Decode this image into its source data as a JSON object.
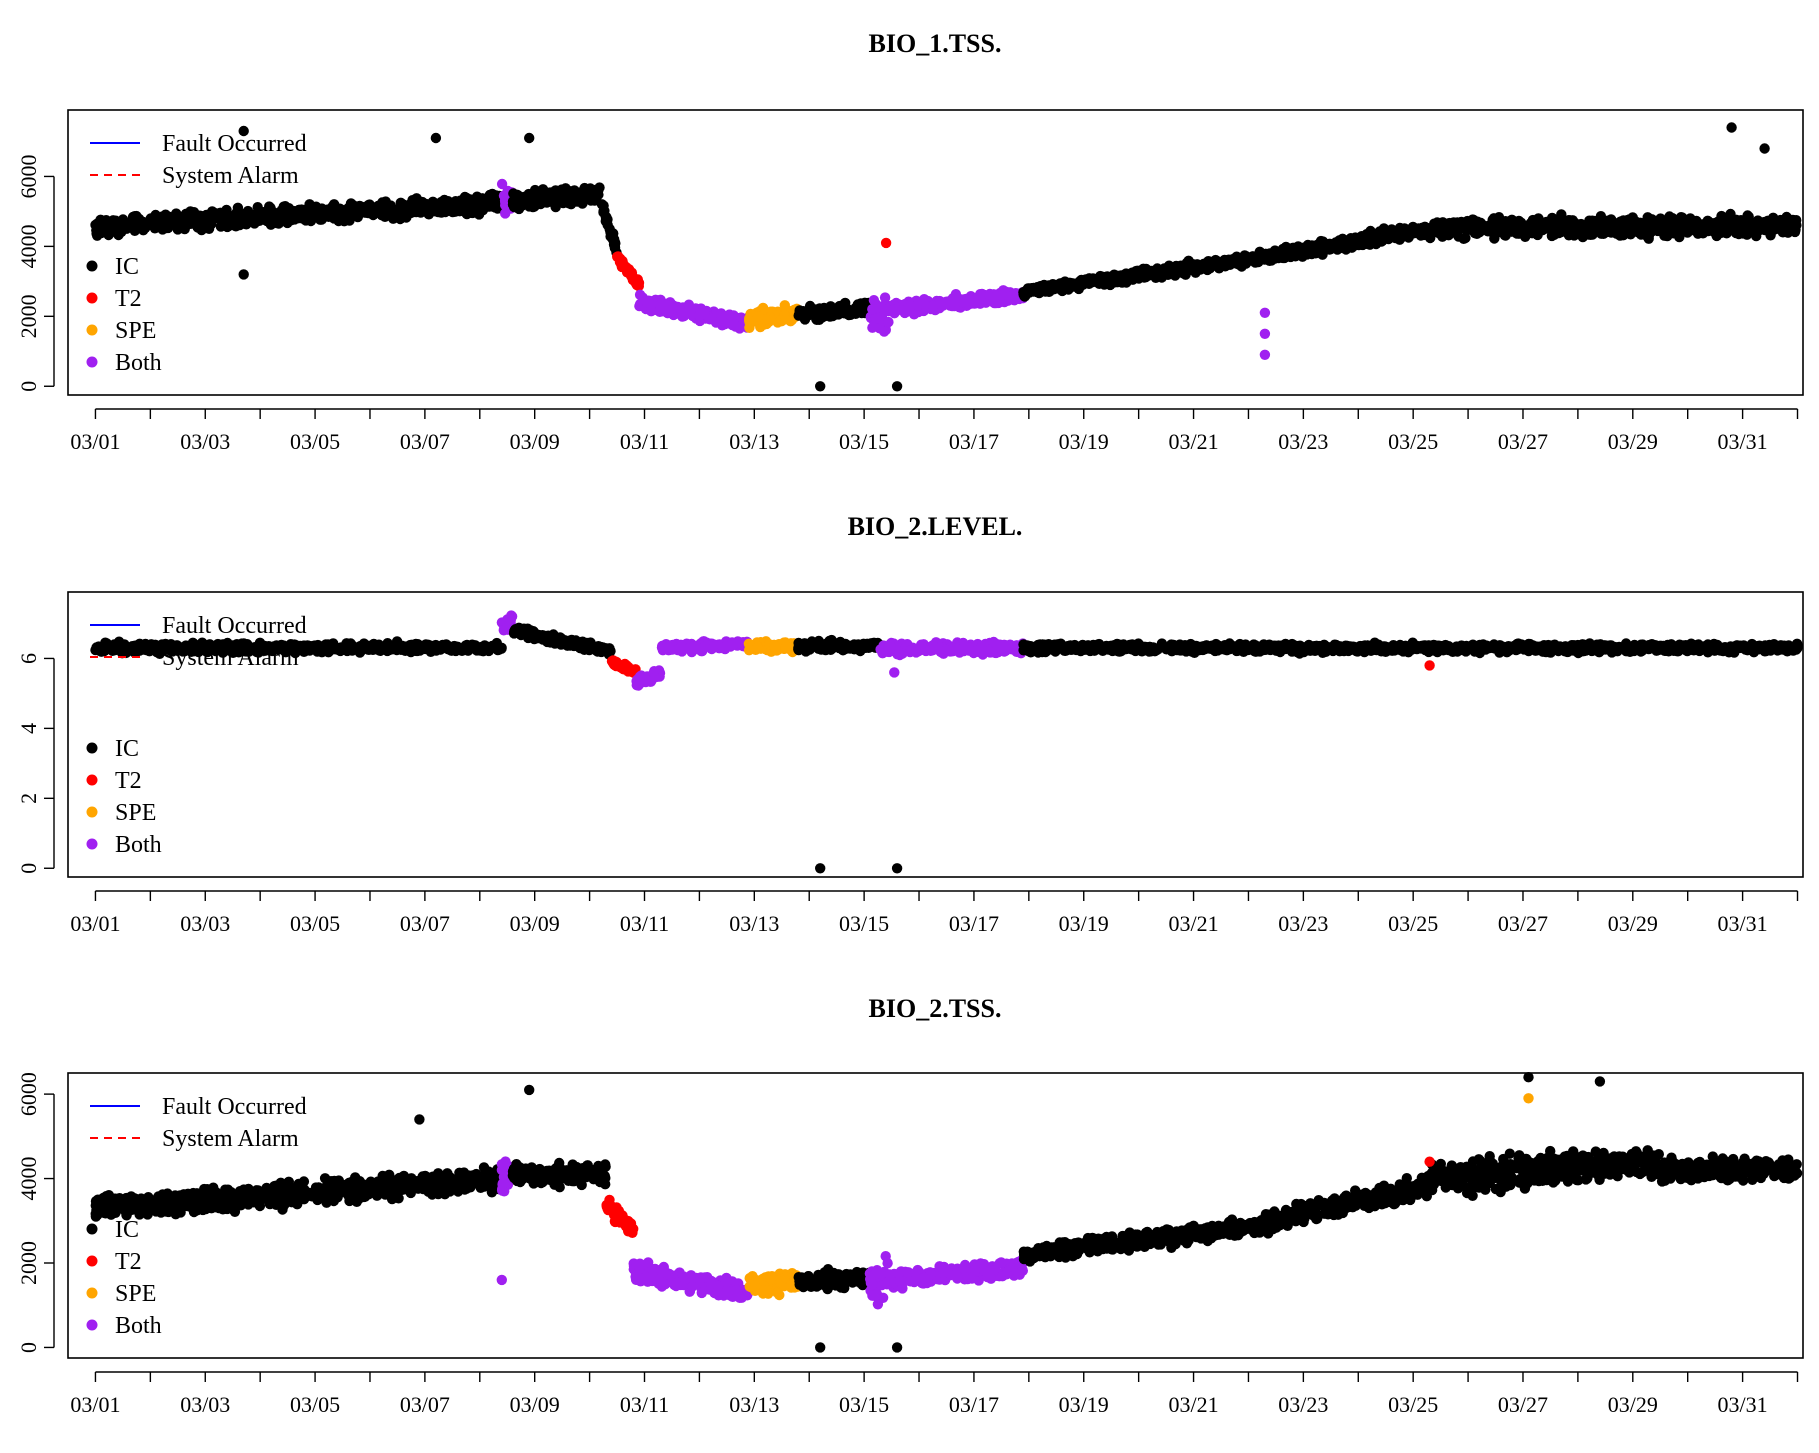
{
  "figure": {
    "panel_titles": [
      "BIO_1.TSS.",
      "BIO_2.LEVEL.",
      "BIO_2.TSS."
    ]
  },
  "legend": {
    "lines": [
      {
        "label": "Fault Occurred",
        "color": "#0000ff",
        "style": "solid"
      },
      {
        "label": "System Alarm",
        "color": "#ff0000",
        "style": "dashed"
      }
    ],
    "points": [
      {
        "label": "IC",
        "color": "#000000"
      },
      {
        "label": "T2",
        "color": "#ff0000"
      },
      {
        "label": "SPE",
        "color": "#ffa500"
      },
      {
        "label": "Both",
        "color": "#a020f0"
      }
    ]
  },
  "chart_data": [
    {
      "type": "scatter",
      "title": "BIO_1.TSS.",
      "xlabel": "",
      "ylabel": "",
      "xlim": [
        0.5,
        32.1
      ],
      "ylim": [
        -250,
        7900
      ],
      "x_ticks": [
        1,
        2,
        3,
        4,
        5,
        6,
        7,
        8,
        9,
        10,
        11,
        12,
        13,
        14,
        15,
        16,
        17,
        18,
        19,
        20,
        21,
        22,
        23,
        24,
        25,
        26,
        27,
        28,
        29,
        30,
        31,
        32
      ],
      "x_tick_labels": [
        "03/01",
        "03/03",
        "03/05",
        "03/07",
        "03/09",
        "03/11",
        "03/13",
        "03/15",
        "03/17",
        "03/19",
        "03/21",
        "03/23",
        "03/25",
        "03/27",
        "03/29",
        "03/31"
      ],
      "x_tick_label_positions": [
        1,
        3,
        5,
        7,
        9,
        11,
        13,
        15,
        17,
        19,
        21,
        23,
        25,
        27,
        29,
        31
      ],
      "y_ticks": [
        0,
        2000,
        4000,
        6000
      ],
      "y_tick_labels": [
        "0",
        "2000",
        "4000",
        "6000"
      ],
      "legend_position": "top-left",
      "grid": false,
      "segments": [
        {
          "x_start": 1.0,
          "x_end": 8.4,
          "y_start": 4550,
          "y_end": 5250,
          "spread": 420,
          "class": "IC"
        },
        {
          "x_start": 8.4,
          "x_end": 8.6,
          "y_start": 5300,
          "y_end": 5400,
          "spread": 700,
          "class": "Both"
        },
        {
          "x_start": 8.6,
          "x_end": 10.2,
          "y_start": 5300,
          "y_end": 5500,
          "spread": 420,
          "class": "IC"
        },
        {
          "x_start": 10.2,
          "x_end": 10.5,
          "y_start": 5300,
          "y_end": 3900,
          "spread": 300,
          "class": "IC"
        },
        {
          "x_start": 10.5,
          "x_end": 10.9,
          "y_start": 3700,
          "y_end": 2900,
          "spread": 250,
          "class": "T2"
        },
        {
          "x_start": 10.9,
          "x_end": 12.9,
          "y_start": 2400,
          "y_end": 1800,
          "spread": 350,
          "class": "Both"
        },
        {
          "x_start": 12.9,
          "x_end": 13.8,
          "y_start": 1900,
          "y_end": 2100,
          "spread": 350,
          "class": "SPE"
        },
        {
          "x_start": 13.8,
          "x_end": 15.1,
          "y_start": 2050,
          "y_end": 2250,
          "spread": 300,
          "class": "IC"
        },
        {
          "x_start": 15.1,
          "x_end": 15.45,
          "y_start": 2000,
          "y_end": 2200,
          "spread": 900,
          "class": "Both"
        },
        {
          "x_start": 15.45,
          "x_end": 17.9,
          "y_start": 2200,
          "y_end": 2600,
          "spread": 300,
          "class": "Both"
        },
        {
          "x_start": 17.9,
          "x_end": 22.3,
          "y_start": 2700,
          "y_end": 3700,
          "spread": 260,
          "class": "IC"
        },
        {
          "x_start": 22.3,
          "x_end": 25.3,
          "y_start": 3700,
          "y_end": 4500,
          "spread": 300,
          "class": "IC"
        },
        {
          "x_start": 25.3,
          "x_end": 32.0,
          "y_start": 4500,
          "y_end": 4600,
          "spread": 460,
          "class": "IC"
        }
      ],
      "outliers": [
        {
          "x": 14.2,
          "y": 0,
          "class": "IC"
        },
        {
          "x": 15.6,
          "y": 0,
          "class": "IC"
        },
        {
          "x": 3.7,
          "y": 7300,
          "class": "IC"
        },
        {
          "x": 7.2,
          "y": 7100,
          "class": "IC"
        },
        {
          "x": 8.9,
          "y": 7100,
          "class": "IC"
        },
        {
          "x": 30.8,
          "y": 7400,
          "class": "IC"
        },
        {
          "x": 31.4,
          "y": 6800,
          "class": "IC"
        },
        {
          "x": 3.7,
          "y": 3200,
          "class": "IC"
        },
        {
          "x": 15.4,
          "y": 4100,
          "class": "T2"
        },
        {
          "x": 22.3,
          "y": 900,
          "class": "Both"
        },
        {
          "x": 22.3,
          "y": 1500,
          "class": "Both"
        },
        {
          "x": 22.3,
          "y": 2100,
          "class": "Both"
        }
      ]
    },
    {
      "type": "scatter",
      "title": "BIO_2.LEVEL.",
      "xlabel": "",
      "ylabel": "",
      "xlim": [
        0.5,
        32.1
      ],
      "ylim": [
        -0.25,
        7.9
      ],
      "x_ticks": [
        1,
        2,
        3,
        4,
        5,
        6,
        7,
        8,
        9,
        10,
        11,
        12,
        13,
        14,
        15,
        16,
        17,
        18,
        19,
        20,
        21,
        22,
        23,
        24,
        25,
        26,
        27,
        28,
        29,
        30,
        31,
        32
      ],
      "x_tick_labels": [
        "03/01",
        "03/03",
        "03/05",
        "03/07",
        "03/09",
        "03/11",
        "03/13",
        "03/15",
        "03/17",
        "03/19",
        "03/21",
        "03/23",
        "03/25",
        "03/27",
        "03/29",
        "03/31"
      ],
      "x_tick_label_positions": [
        1,
        3,
        5,
        7,
        9,
        11,
        13,
        15,
        17,
        19,
        21,
        23,
        25,
        27,
        29,
        31
      ],
      "y_ticks": [
        0,
        2,
        4,
        6
      ],
      "y_tick_labels": [
        "0",
        "2",
        "4",
        "6"
      ],
      "legend_position": "top-left",
      "grid": false,
      "segments": [
        {
          "x_start": 1.0,
          "x_end": 8.4,
          "y_start": 6.3,
          "y_end": 6.3,
          "spread": 0.22,
          "class": "IC"
        },
        {
          "x_start": 8.4,
          "x_end": 8.6,
          "y_start": 6.9,
          "y_end": 7.2,
          "spread": 0.35,
          "class": "Both"
        },
        {
          "x_start": 8.6,
          "x_end": 10.4,
          "y_start": 6.8,
          "y_end": 6.2,
          "spread": 0.22,
          "class": "IC"
        },
        {
          "x_start": 10.4,
          "x_end": 10.85,
          "y_start": 5.9,
          "y_end": 5.6,
          "spread": 0.2,
          "class": "T2"
        },
        {
          "x_start": 10.85,
          "x_end": 11.3,
          "y_start": 5.3,
          "y_end": 5.6,
          "spread": 0.25,
          "class": "Both"
        },
        {
          "x_start": 11.3,
          "x_end": 12.9,
          "y_start": 6.3,
          "y_end": 6.4,
          "spread": 0.22,
          "class": "Both"
        },
        {
          "x_start": 12.9,
          "x_end": 13.8,
          "y_start": 6.35,
          "y_end": 6.35,
          "spread": 0.25,
          "class": "SPE"
        },
        {
          "x_start": 13.8,
          "x_end": 15.3,
          "y_start": 6.35,
          "y_end": 6.35,
          "spread": 0.22,
          "class": "IC"
        },
        {
          "x_start": 15.3,
          "x_end": 17.9,
          "y_start": 6.3,
          "y_end": 6.3,
          "spread": 0.28,
          "class": "Both"
        },
        {
          "x_start": 17.9,
          "x_end": 32.0,
          "y_start": 6.3,
          "y_end": 6.3,
          "spread": 0.2,
          "class": "IC"
        }
      ],
      "outliers": [
        {
          "x": 14.2,
          "y": 0,
          "class": "IC"
        },
        {
          "x": 15.6,
          "y": 0,
          "class": "IC"
        },
        {
          "x": 25.3,
          "y": 5.8,
          "class": "T2"
        },
        {
          "x": 15.55,
          "y": 5.6,
          "class": "Both"
        }
      ]
    },
    {
      "type": "scatter",
      "title": "BIO_2.TSS.",
      "xlabel": "",
      "ylabel": "",
      "xlim": [
        0.5,
        32.1
      ],
      "ylim": [
        -250,
        6500
      ],
      "x_ticks": [
        1,
        2,
        3,
        4,
        5,
        6,
        7,
        8,
        9,
        10,
        11,
        12,
        13,
        14,
        15,
        16,
        17,
        18,
        19,
        20,
        21,
        22,
        23,
        24,
        25,
        26,
        27,
        28,
        29,
        30,
        31,
        32
      ],
      "x_tick_labels": [
        "03/01",
        "03/03",
        "03/05",
        "03/07",
        "03/09",
        "03/11",
        "03/13",
        "03/15",
        "03/17",
        "03/19",
        "03/21",
        "03/23",
        "03/25",
        "03/27",
        "03/29",
        "03/31"
      ],
      "x_tick_label_positions": [
        1,
        3,
        5,
        7,
        9,
        11,
        13,
        15,
        17,
        19,
        21,
        23,
        25,
        27,
        29,
        31
      ],
      "y_ticks": [
        0,
        2000,
        4000,
        6000
      ],
      "y_tick_labels": [
        "0",
        "2000",
        "4000",
        "6000"
      ],
      "legend_position": "top-left",
      "grid": false,
      "segments": [
        {
          "x_start": 1.0,
          "x_end": 8.4,
          "y_start": 3300,
          "y_end": 4000,
          "spread": 480,
          "class": "IC"
        },
        {
          "x_start": 8.4,
          "x_end": 8.6,
          "y_start": 4000,
          "y_end": 4100,
          "spread": 700,
          "class": "Both"
        },
        {
          "x_start": 8.6,
          "x_end": 10.3,
          "y_start": 4100,
          "y_end": 4100,
          "spread": 420,
          "class": "IC"
        },
        {
          "x_start": 10.3,
          "x_end": 10.8,
          "y_start": 3400,
          "y_end": 2700,
          "spread": 300,
          "class": "T2"
        },
        {
          "x_start": 10.8,
          "x_end": 12.9,
          "y_start": 1800,
          "y_end": 1300,
          "spread": 380,
          "class": "Both"
        },
        {
          "x_start": 12.9,
          "x_end": 13.8,
          "y_start": 1500,
          "y_end": 1600,
          "spread": 420,
          "class": "SPE"
        },
        {
          "x_start": 13.8,
          "x_end": 15.1,
          "y_start": 1550,
          "y_end": 1650,
          "spread": 350,
          "class": "IC"
        },
        {
          "x_start": 15.1,
          "x_end": 15.45,
          "y_start": 1600,
          "y_end": 1600,
          "spread": 900,
          "class": "Both"
        },
        {
          "x_start": 15.45,
          "x_end": 17.9,
          "y_start": 1600,
          "y_end": 1900,
          "spread": 350,
          "class": "Both"
        },
        {
          "x_start": 17.9,
          "x_end": 22.3,
          "y_start": 2200,
          "y_end": 2900,
          "spread": 320,
          "class": "IC"
        },
        {
          "x_start": 22.3,
          "x_end": 25.3,
          "y_start": 3000,
          "y_end": 3800,
          "spread": 420,
          "class": "IC"
        },
        {
          "x_start": 25.3,
          "x_end": 29.5,
          "y_start": 4000,
          "y_end": 4400,
          "spread": 650,
          "class": "IC"
        },
        {
          "x_start": 29.5,
          "x_end": 32.0,
          "y_start": 4200,
          "y_end": 4200,
          "spread": 420,
          "class": "IC"
        }
      ],
      "outliers": [
        {
          "x": 14.2,
          "y": 0,
          "class": "IC"
        },
        {
          "x": 15.6,
          "y": 0,
          "class": "IC"
        },
        {
          "x": 8.9,
          "y": 6100,
          "class": "IC"
        },
        {
          "x": 6.9,
          "y": 5400,
          "class": "IC"
        },
        {
          "x": 27.1,
          "y": 6400,
          "class": "IC"
        },
        {
          "x": 28.4,
          "y": 6300,
          "class": "IC"
        },
        {
          "x": 8.4,
          "y": 1600,
          "class": "Both"
        },
        {
          "x": 27.1,
          "y": 5900,
          "class": "SPE"
        },
        {
          "x": 25.3,
          "y": 4400,
          "class": "T2"
        }
      ]
    }
  ]
}
